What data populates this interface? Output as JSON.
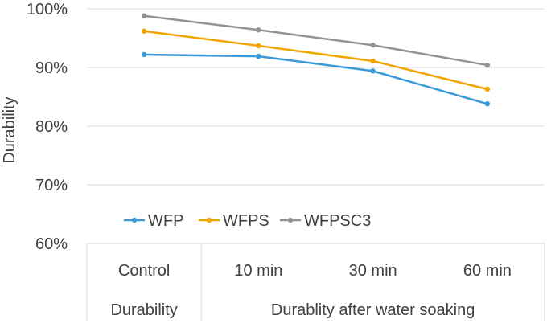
{
  "chart_data": {
    "type": "line",
    "title": "",
    "ylabel": "Durability",
    "xlabel": "",
    "ylim": [
      60,
      100
    ],
    "yticks": [
      60,
      70,
      80,
      90,
      100
    ],
    "ytick_labels": [
      "60%",
      "70%",
      "80%",
      "90%",
      "100%"
    ],
    "grid": true,
    "legend_position": "bottom-left",
    "categories": [
      "Control",
      "10 min",
      "30 min",
      "60 min"
    ],
    "category_groups": [
      {
        "label": "Durability",
        "span": 1
      },
      {
        "label": "Durablity after water soaking",
        "span": 3
      }
    ],
    "series": [
      {
        "name": "WFP",
        "color": "#3a9ad9",
        "values": [
          92.2,
          91.9,
          89.4,
          83.8
        ]
      },
      {
        "name": "WFPS",
        "color": "#f0a500",
        "values": [
          96.2,
          93.7,
          91.1,
          86.3
        ]
      },
      {
        "name": "WFPSC3",
        "color": "#939393",
        "values": [
          98.8,
          96.4,
          93.8,
          90.4
        ]
      }
    ]
  }
}
